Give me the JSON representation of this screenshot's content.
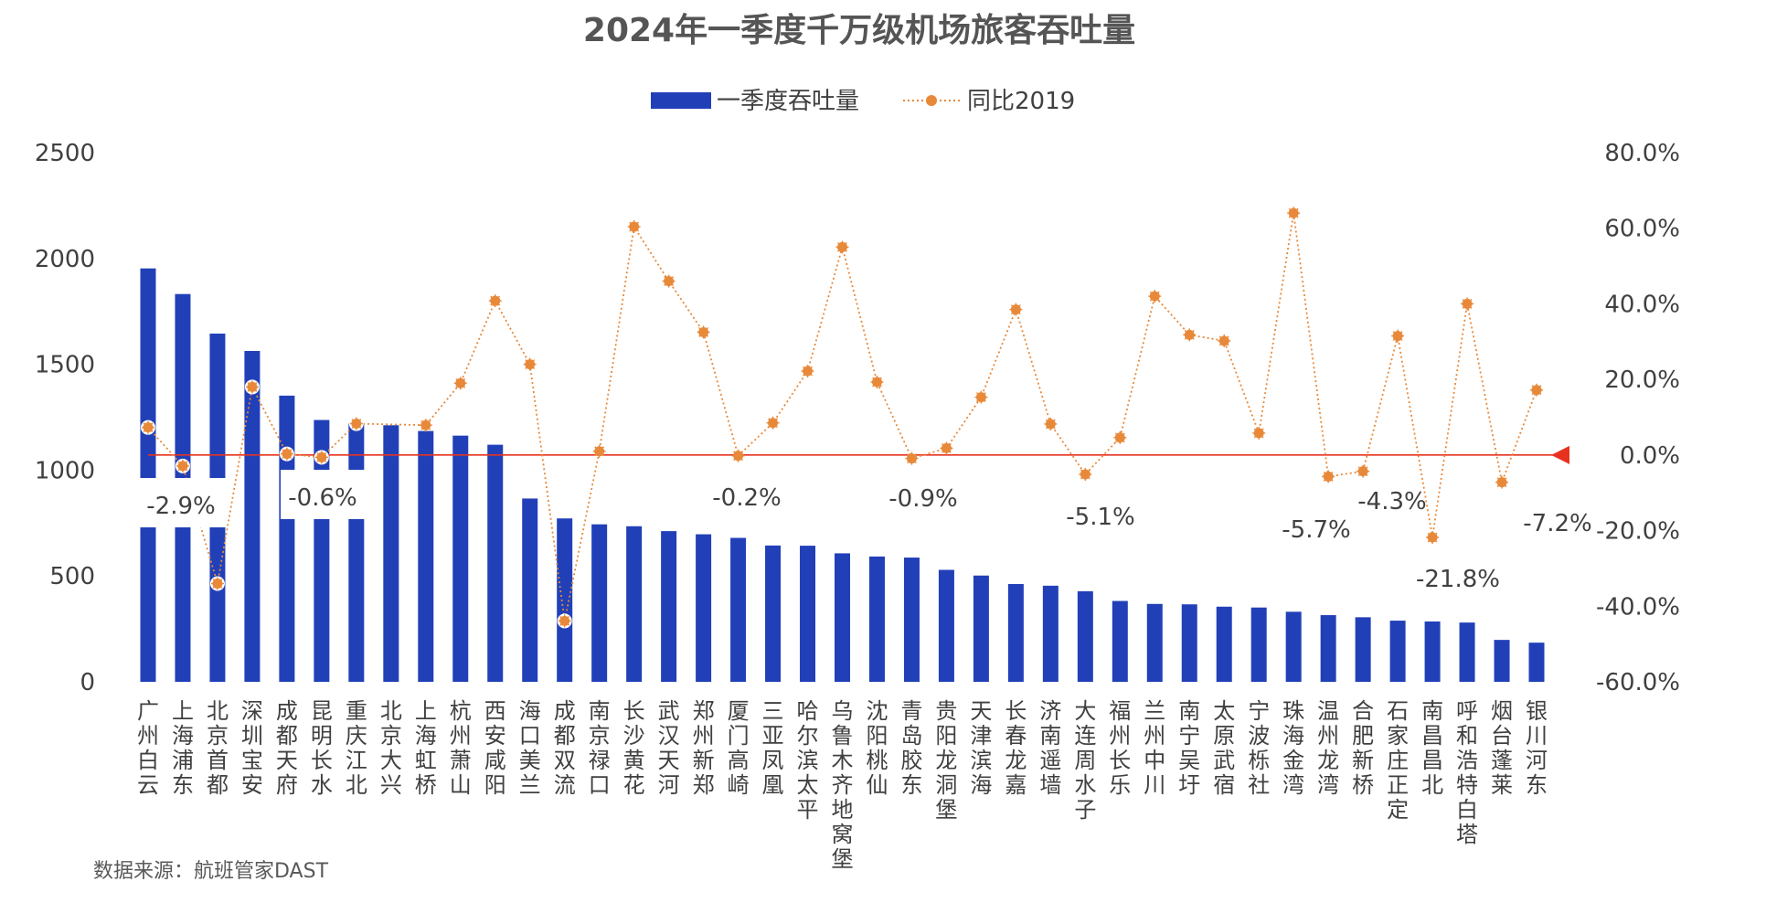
{
  "chart_data": {
    "type": "bar",
    "title": "2024年一季度千万级机场旅客吞吐量",
    "source": "数据来源：航班管家DAST",
    "legend": {
      "placement": "top-center",
      "items": [
        "一季度吞吐量",
        "同比2019"
      ]
    },
    "colors": {
      "bar": "#2140b8",
      "line": "#e8893a",
      "zero_line": "#e8321f",
      "text": "#404040",
      "title": "#555555"
    },
    "ylim_left": [
      0,
      2500
    ],
    "yticks_left": [
      "0",
      "500",
      "1000",
      "1500",
      "2000",
      "2500"
    ],
    "ylim_right": [
      -60,
      80
    ],
    "yticks_right": [
      "-60.0%",
      "-40.0%",
      "-20.0%",
      "0.0%",
      "20.0%",
      "40.0%",
      "60.0%",
      "80.0%"
    ],
    "categories": [
      "广州白云",
      "上海浦东",
      "北京首都",
      "深圳宝安",
      "成都天府",
      "昆明长水",
      "重庆江北",
      "北京大兴",
      "上海虹桥",
      "杭州萧山",
      "西安咸阳",
      "海口美兰",
      "成都双流",
      "南京禄口",
      "长沙黄花",
      "武汉天河",
      "郑州新郑",
      "厦门高崎",
      "三亚凤凰",
      "哈尔滨太平",
      "乌鲁木齐地窝堡",
      "沈阳桃仙",
      "青岛胶东",
      "贵阳龙洞堡",
      "天津滨海",
      "长春龙嘉",
      "济南遥墙",
      "大连周水子",
      "福州长乐",
      "兰州中川",
      "南宁吴圩",
      "太原武宿",
      "宁波栎社",
      "珠海金湾",
      "温州龙湾",
      "合肥新桥",
      "石家庄正定",
      "南昌昌北",
      "呼和浩特白塔",
      "烟台蓬莱",
      "银川河东"
    ],
    "series": [
      {
        "name": "一季度吞吐量",
        "type": "bar",
        "axis": "left",
        "values": [
          1953,
          1832,
          1645,
          1563,
          1352,
          1237,
          1220,
          1212,
          1185,
          1163,
          1120,
          866,
          772,
          744,
          735,
          712,
          697,
          680,
          644,
          643,
          607,
          592,
          587,
          529,
          502,
          462,
          454,
          428,
          382,
          368,
          366,
          355,
          351,
          331,
          315,
          305,
          289,
          285,
          280,
          198,
          185
        ]
      },
      {
        "name": "同比2019",
        "type": "line",
        "axis": "right",
        "values": [
          7.3,
          -2.9,
          -34.0,
          18.0,
          0.3,
          -0.6,
          8.3,
          null,
          7.9,
          19.0,
          40.8,
          24.0,
          -43.9,
          1.0,
          60.4,
          46.0,
          32.5,
          -0.2,
          8.5,
          22.2,
          55.0,
          19.3,
          -0.9,
          1.8,
          15.3,
          38.5,
          8.2,
          -5.1,
          4.6,
          42.0,
          31.8,
          30.2,
          5.8,
          64.0,
          -5.7,
          -4.3,
          31.5,
          -21.8,
          40.0,
          -7.2,
          17.2
        ]
      }
    ],
    "annotations": [
      {
        "index": 1,
        "text": "-2.9%"
      },
      {
        "index": 5,
        "text": "-0.6%"
      },
      {
        "index": 17,
        "text": "-0.2%"
      },
      {
        "index": 22,
        "text": "-0.9%"
      },
      {
        "index": 27,
        "text": "-5.1%"
      },
      {
        "index": 34,
        "text": "-5.7%"
      },
      {
        "index": 35,
        "text": "-4.3%"
      },
      {
        "index": 37,
        "text": "-21.8%"
      },
      {
        "index": 39,
        "text": "-7.2%"
      }
    ]
  }
}
